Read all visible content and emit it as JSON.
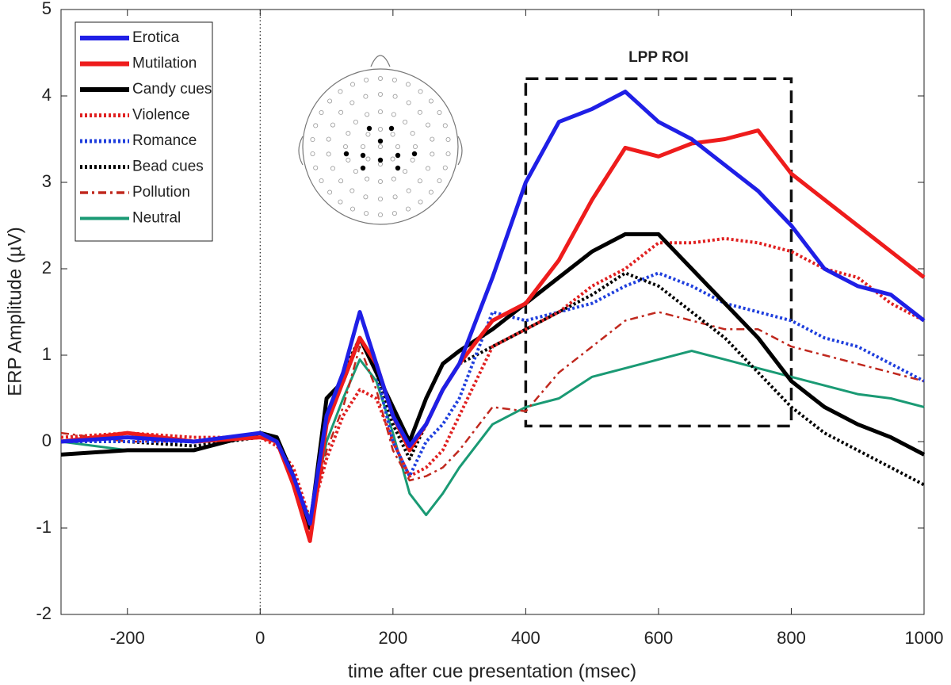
{
  "chart_data": {
    "type": "line",
    "xlabel": "time after cue presentation (msec)",
    "ylabel": "ERP Amplitude (µV)",
    "xlim": [
      -300,
      1000
    ],
    "ylim": [
      -2,
      5
    ],
    "xticks": [
      -200,
      0,
      200,
      400,
      600,
      800,
      1000
    ],
    "yticks": [
      -2,
      -1,
      0,
      1,
      2,
      3,
      4,
      5
    ],
    "grid": false,
    "legend": "upper left",
    "annotation": {
      "label": "LPP ROI",
      "xlim": [
        400,
        800
      ],
      "ylim": [
        0.18,
        4.2
      ]
    },
    "x": [
      -300,
      -200,
      -100,
      0,
      25,
      50,
      75,
      100,
      125,
      150,
      175,
      200,
      225,
      250,
      275,
      300,
      350,
      400,
      450,
      500,
      550,
      600,
      650,
      700,
      750,
      800,
      850,
      900,
      950,
      1000
    ],
    "series": [
      {
        "name": "Erotica",
        "color": "#1f1fe6",
        "style": "thick",
        "values": [
          0,
          0.05,
          0,
          0.1,
          0,
          -0.4,
          -0.95,
          0.3,
          0.8,
          1.5,
          0.9,
          0.3,
          -0.05,
          0.2,
          0.6,
          0.9,
          1.9,
          3.0,
          3.7,
          3.85,
          4.05,
          3.7,
          3.5,
          3.2,
          2.9,
          2.5,
          2.0,
          1.8,
          1.7,
          1.4
        ]
      },
      {
        "name": "Mutilation",
        "color": "#ee1c1c",
        "style": "thick",
        "values": [
          0,
          0.1,
          0,
          0.05,
          0,
          -0.5,
          -1.15,
          0.2,
          0.7,
          1.2,
          0.9,
          0.3,
          -0.1,
          0.2,
          0.6,
          0.9,
          1.4,
          1.6,
          2.1,
          2.8,
          3.4,
          3.3,
          3.45,
          3.5,
          3.6,
          3.1,
          2.8,
          2.5,
          2.2,
          1.9
        ]
      },
      {
        "name": "Candy cues",
        "color": "#000000",
        "style": "thick",
        "values": [
          -0.15,
          -0.1,
          -0.1,
          0.1,
          0.05,
          -0.4,
          -1.0,
          0.5,
          0.7,
          1.2,
          0.8,
          0.4,
          0,
          0.5,
          0.9,
          1.05,
          1.3,
          1.6,
          1.9,
          2.2,
          2.4,
          2.4,
          2.0,
          1.6,
          1.2,
          0.7,
          0.4,
          0.2,
          0.05,
          -0.15
        ]
      },
      {
        "name": "Violence",
        "color": "#e02020",
        "style": "dotted",
        "values": [
          0.05,
          0.1,
          0.05,
          0.05,
          -0.05,
          -0.3,
          -0.9,
          -0.2,
          0.3,
          0.6,
          0.5,
          0,
          -0.4,
          -0.3,
          -0.1,
          0.3,
          1.1,
          1.3,
          1.5,
          1.8,
          2.0,
          2.3,
          2.3,
          2.35,
          2.3,
          2.2,
          2.0,
          1.9,
          1.6,
          1.4
        ]
      },
      {
        "name": "Romance",
        "color": "#1f3fdd",
        "style": "dotted",
        "values": [
          0,
          0,
          0,
          0.05,
          0,
          -0.4,
          -1.0,
          0.2,
          0.7,
          1.2,
          0.8,
          0,
          -0.4,
          0,
          0.2,
          0.5,
          1.5,
          1.4,
          1.5,
          1.6,
          1.8,
          1.95,
          1.8,
          1.6,
          1.5,
          1.4,
          1.2,
          1.1,
          0.9,
          0.7
        ]
      },
      {
        "name": "Bead cues",
        "color": "#000000",
        "style": "dotted",
        "values": [
          0,
          0,
          -0.05,
          0.05,
          0,
          -0.5,
          -1.0,
          0.3,
          0.8,
          1.2,
          0.8,
          0.2,
          -0.2,
          0.2,
          0.6,
          0.9,
          1.1,
          1.3,
          1.5,
          1.7,
          1.95,
          1.8,
          1.5,
          1.2,
          0.8,
          0.4,
          0.1,
          -0.1,
          -0.3,
          -0.5
        ]
      },
      {
        "name": "Pollution",
        "color": "#c0281e",
        "style": "dashdot",
        "values": [
          0.1,
          0,
          0,
          0.05,
          0,
          -0.5,
          -1.0,
          -0.1,
          0.4,
          1.1,
          0.6,
          -0.1,
          -0.45,
          -0.4,
          -0.3,
          -0.1,
          0.4,
          0.35,
          0.8,
          1.1,
          1.4,
          1.5,
          1.4,
          1.3,
          1.3,
          1.1,
          1.0,
          0.9,
          0.8,
          0.7
        ]
      },
      {
        "name": "Neutral",
        "color": "#1a9a74",
        "style": "thin",
        "values": [
          0,
          -0.1,
          -0.1,
          0.1,
          0,
          -0.4,
          -0.9,
          0,
          0.5,
          0.95,
          0.7,
          0.1,
          -0.6,
          -0.85,
          -0.6,
          -0.3,
          0.2,
          0.4,
          0.5,
          0.75,
          0.85,
          0.95,
          1.05,
          0.95,
          0.85,
          0.75,
          0.65,
          0.55,
          0.5,
          0.4
        ]
      }
    ]
  }
}
